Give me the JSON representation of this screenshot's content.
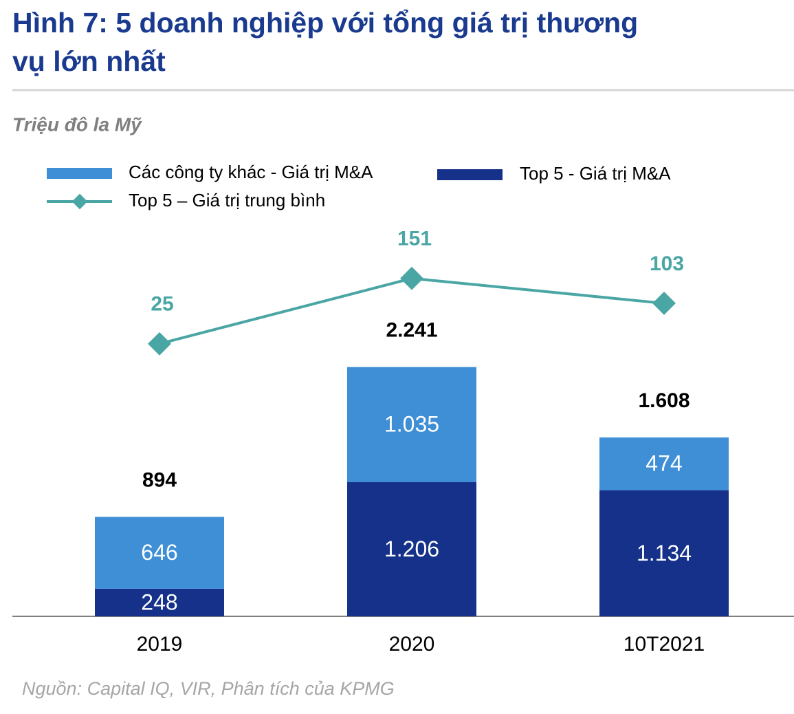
{
  "chart_data": {
    "type": "stacked-bar-line",
    "title": "Hình 7: 5 doanh nghiệp với tổng giá trị thương vụ lớn nhất",
    "subtitle": "Triệu đô la Mỹ",
    "source": "Nguồn: Capital IQ, VIR, Phân tích của KPMG",
    "categories": [
      "2019",
      "2020",
      "10T2021"
    ],
    "series": [
      {
        "name": "Các công ty khác - Giá trị M&A",
        "color": "#3f8fd6",
        "values": [
          646,
          1035,
          474
        ],
        "value_labels": [
          "646",
          "1.035",
          "474"
        ]
      },
      {
        "name": "Top 5 - Giá trị M&A",
        "color": "#15318a",
        "values": [
          248,
          1206,
          1134
        ],
        "value_labels": [
          "248",
          "1.206",
          "1.134"
        ]
      },
      {
        "name": "Top 5 – Giá trị trung bình",
        "color": "#4aa6a4",
        "type": "line",
        "axis": "y2",
        "values": [
          25,
          151,
          103
        ]
      }
    ],
    "totals": {
      "values": [
        894,
        2241,
        1608
      ],
      "value_labels": [
        "894",
        "2.241",
        "1.608"
      ]
    },
    "ylim": [
      0,
      3500
    ],
    "y2lim": [
      -500,
      250
    ]
  }
}
